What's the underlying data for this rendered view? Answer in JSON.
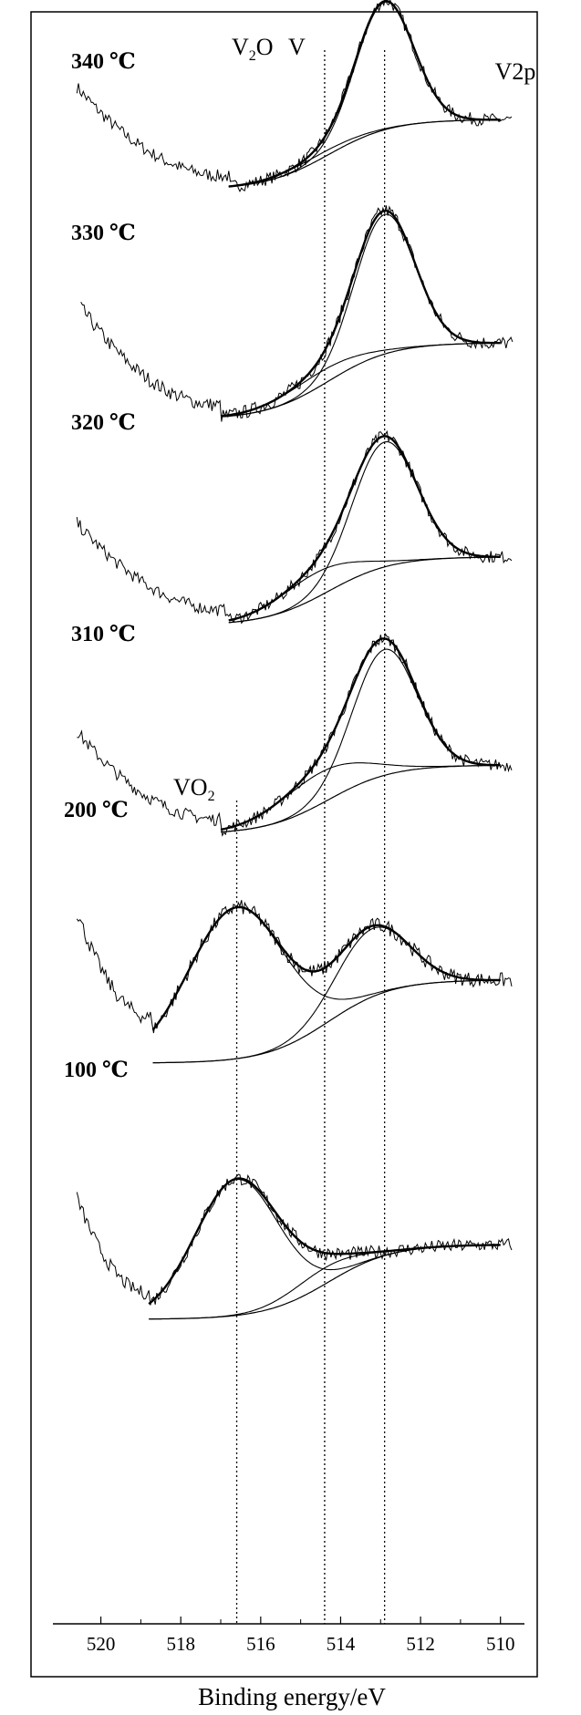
{
  "chart_data": {
    "type": "line",
    "title": "V2p",
    "xlabel": "Binding energy/eV",
    "ylabel": "",
    "x_reversed": true,
    "xlim": [
      521.2,
      509.4
    ],
    "xticks": [
      520,
      518,
      516,
      514,
      512,
      510
    ],
    "grid": false,
    "reference_lines": [
      {
        "label": "VO",
        "sub": "2",
        "x": 516.6
      },
      {
        "label": "V",
        "sub": "2",
        "tail": "O",
        "x": 514.4
      },
      {
        "label": "V",
        "sub": "",
        "tail": "",
        "x": 512.9
      }
    ],
    "series": [
      {
        "label": "340 ℃",
        "raw_start": 520.6,
        "fit_start": 516.8,
        "components": [
          {
            "center": 512.9,
            "height": 1.0,
            "width": 0.72
          },
          {
            "center": 514.5,
            "height": 0.04,
            "width": 0.9
          }
        ]
      },
      {
        "label": "330 ℃",
        "raw_start": 520.5,
        "fit_start": 517.0,
        "components": [
          {
            "center": 512.9,
            "height": 1.0,
            "width": 0.75
          },
          {
            "center": 514.5,
            "height": 0.1,
            "width": 1.0
          }
        ]
      },
      {
        "label": "320 ℃",
        "raw_start": 520.6,
        "fit_start": 516.8,
        "components": [
          {
            "center": 512.9,
            "height": 1.0,
            "width": 0.8
          },
          {
            "center": 514.6,
            "height": 0.2,
            "width": 1.0
          }
        ]
      },
      {
        "label": "310 ℃",
        "raw_start": 520.6,
        "fit_start": 517.0,
        "components": [
          {
            "center": 512.9,
            "height": 1.0,
            "width": 0.8
          },
          {
            "center": 514.5,
            "height": 0.25,
            "width": 1.1
          }
        ]
      },
      {
        "label": "200 ℃",
        "raw_start": 520.6,
        "fit_start": 518.7,
        "components": [
          {
            "center": 516.6,
            "height": 1.0,
            "width": 1.2
          },
          {
            "center": 513.2,
            "height": 0.45,
            "width": 0.9
          }
        ]
      },
      {
        "label": "100 ℃",
        "raw_start": 520.6,
        "fit_start": 518.8,
        "components": [
          {
            "center": 516.6,
            "height": 1.0,
            "width": 1.05
          },
          {
            "center": 514.4,
            "height": 0.12,
            "width": 0.9
          }
        ]
      }
    ]
  }
}
